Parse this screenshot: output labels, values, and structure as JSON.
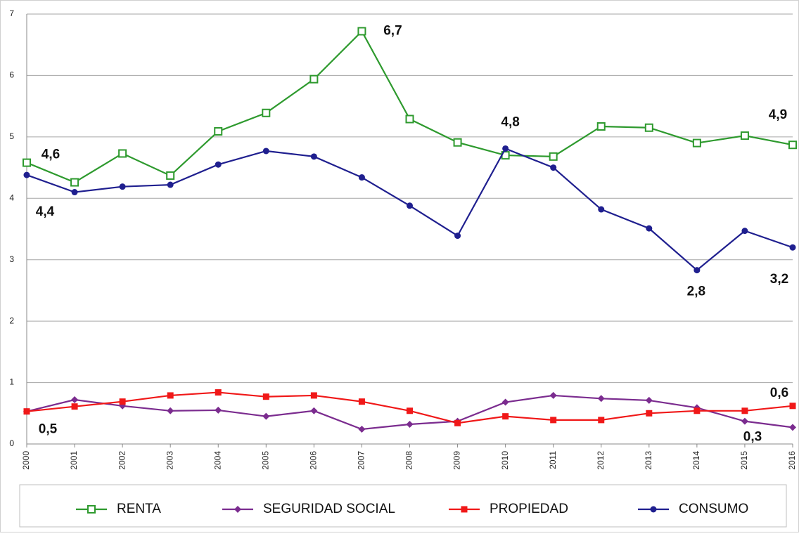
{
  "chart_data": {
    "type": "line",
    "categories": [
      "2000",
      "2001",
      "2002",
      "2003",
      "2004",
      "2005",
      "2006",
      "2007",
      "2008",
      "2009",
      "2010",
      "2011",
      "2012",
      "2013",
      "2014",
      "2015",
      "2016"
    ],
    "ylim": [
      0,
      7
    ],
    "yticks": [
      0,
      1,
      2,
      3,
      4,
      5,
      6,
      7
    ],
    "grid": true,
    "legend": "bottom",
    "series": [
      {
        "name": "RENTA",
        "color": "#2e9a2e",
        "marker": "open-square",
        "values": [
          4.58,
          4.26,
          4.73,
          4.37,
          5.09,
          5.39,
          5.94,
          6.72,
          5.29,
          4.91,
          4.7,
          4.68,
          5.17,
          5.15,
          4.9,
          5.02,
          4.87
        ],
        "value_labels": [
          "4,6",
          null,
          null,
          null,
          null,
          null,
          null,
          "6,7",
          null,
          null,
          null,
          null,
          null,
          null,
          null,
          null,
          "4,9"
        ]
      },
      {
        "name": "SEGURIDAD SOCIAL",
        "color": "#7b2c8f",
        "marker": "diamond",
        "values": [
          0.53,
          0.72,
          0.62,
          0.54,
          0.55,
          0.45,
          0.54,
          0.24,
          0.32,
          0.37,
          0.68,
          0.79,
          0.74,
          0.71,
          0.59,
          0.37,
          0.27
        ],
        "value_labels": [
          null,
          null,
          null,
          null,
          null,
          null,
          null,
          null,
          null,
          null,
          null,
          null,
          null,
          null,
          null,
          null,
          "0,3"
        ]
      },
      {
        "name": "PROPIEDAD",
        "color": "#f01818",
        "marker": "square",
        "values": [
          0.53,
          0.61,
          0.69,
          0.79,
          0.84,
          0.77,
          0.79,
          0.69,
          0.54,
          0.34,
          0.45,
          0.39,
          0.39,
          0.5,
          0.54,
          0.54,
          0.62
        ],
        "value_labels": [
          "0,5",
          null,
          null,
          null,
          null,
          null,
          null,
          null,
          null,
          null,
          null,
          null,
          null,
          null,
          null,
          null,
          "0,6"
        ]
      },
      {
        "name": "CONSUMO",
        "color": "#1f1f8f",
        "marker": "circle",
        "values": [
          4.38,
          4.1,
          4.19,
          4.22,
          4.55,
          4.77,
          4.68,
          4.34,
          3.88,
          3.39,
          4.81,
          4.5,
          3.82,
          3.51,
          2.83,
          3.47,
          3.2
        ],
        "value_labels": [
          "4,4",
          null,
          null,
          null,
          null,
          null,
          null,
          null,
          null,
          null,
          "4,8",
          null,
          null,
          null,
          "2,8",
          null,
          "3,2"
        ]
      }
    ]
  }
}
